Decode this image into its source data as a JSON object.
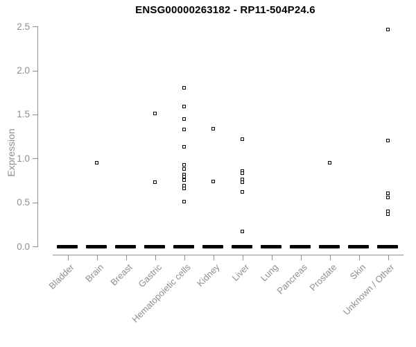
{
  "chart_data": {
    "type": "scatter",
    "subtype": "strip-plot",
    "title": "ENSG00000263182 - RP11-504P24.6",
    "xlabel": "",
    "ylabel": "Expression",
    "ylim": [
      0,
      2.5
    ],
    "yticks": [
      "0.0",
      "0.5",
      "1.0",
      "1.5",
      "2.0",
      "2.5"
    ],
    "grid": false,
    "legend": false,
    "marker": "open-square",
    "categories": [
      "Bladder",
      "Brain",
      "Breast",
      "Gastric",
      "Hematopoietic cells",
      "Kidney",
      "Liver",
      "Lung",
      "Pancreas",
      "Prostate",
      "Skin",
      "Unknown / Other"
    ],
    "series": [
      {
        "category": "Bladder",
        "values": []
      },
      {
        "category": "Brain",
        "values": [
          0.95
        ]
      },
      {
        "category": "Breast",
        "values": []
      },
      {
        "category": "Gastric",
        "values": [
          1.51,
          0.73
        ]
      },
      {
        "category": "Hematopoietic cells",
        "values": [
          1.8,
          1.59,
          1.45,
          1.33,
          1.13,
          0.93,
          0.88,
          0.82,
          0.79,
          0.75,
          0.69,
          0.66,
          0.51
        ]
      },
      {
        "category": "Kidney",
        "values": [
          1.34,
          0.74
        ]
      },
      {
        "category": "Liver",
        "values": [
          1.22,
          0.86,
          0.83,
          0.76,
          0.73,
          0.62,
          0.17
        ]
      },
      {
        "category": "Lung",
        "values": []
      },
      {
        "category": "Pancreas",
        "values": []
      },
      {
        "category": "Prostate",
        "values": [
          0.95
        ]
      },
      {
        "category": "Skin",
        "values": []
      },
      {
        "category": "Unknown / Other",
        "values": [
          2.47,
          1.2,
          0.6,
          0.56,
          0.4,
          0.37
        ]
      }
    ],
    "zero_cluster_all_categories": true,
    "colors": {
      "background": "#ffffff",
      "marker": "#000000",
      "zero_cluster": "#000000",
      "axis": "#8e8e8e",
      "tick_label": "#8e8e8e",
      "title": "#000000"
    }
  }
}
